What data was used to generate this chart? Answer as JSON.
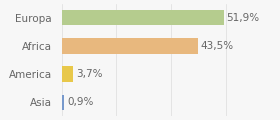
{
  "categories": [
    "Europa",
    "Africa",
    "America",
    "Asia"
  ],
  "values": [
    51.9,
    43.5,
    3.7,
    0.9
  ],
  "labels": [
    "51,9%",
    "43,5%",
    "3,7%",
    "0,9%"
  ],
  "bar_colors": [
    "#b5cc8e",
    "#e8b87e",
    "#e8c84a",
    "#7799cc"
  ],
  "background_color": "#f7f7f7",
  "xlim": [
    0,
    68
  ],
  "bar_height": 0.55,
  "label_fontsize": 7.5,
  "tick_fontsize": 7.5,
  "text_color": "#666666"
}
